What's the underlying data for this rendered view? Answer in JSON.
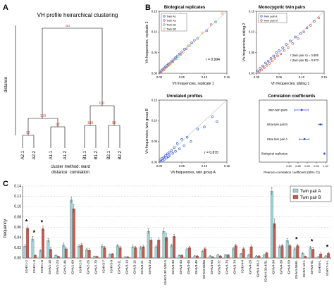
{
  "figure": {
    "panel_a_letter": "A",
    "panel_b_letter": "B",
    "panel_c_letter": "C"
  },
  "chart_data": [
    {
      "type": "dendrogram",
      "title": "VH profile heirarchical clustering",
      "ylabel": "distance",
      "caption_method": "cluster method: ward",
      "caption_distance": "distance: correlation",
      "leaves": [
        "A2.1",
        "A2.2",
        "A1.1",
        "A1.2",
        "B1.1",
        "B1.2",
        "B2.1",
        "B2.2"
      ],
      "node_labels": [
        "au",
        "100",
        "92",
        "92",
        "100",
        "100",
        "88"
      ]
    },
    {
      "type": "scatter",
      "title": "Biological replicates",
      "xlabel": "Vh frequencies, replicate 1",
      "ylabel": "Vh frequencies, replicate 2",
      "r_label": "r = 0.994",
      "xlim": [
        0,
        0.15
      ],
      "ylim": [
        0,
        0.15
      ],
      "xticks": [
        "0.00",
        "0.05",
        "0.10",
        "0.15"
      ],
      "yticks": [
        "0.00",
        "0.05",
        "0.10",
        "0.15"
      ],
      "legend": [
        "Twin A1",
        "Twin A2",
        "Twin B1",
        "Twin B2"
      ],
      "legend_colors": [
        "#2b4fd6",
        "#e0403a",
        "#3a8bd6",
        "#e8a040"
      ],
      "points": [
        [
          0.002,
          0.004
        ],
        [
          0.004,
          0.003
        ],
        [
          0.005,
          0.007
        ],
        [
          0.007,
          0.006
        ],
        [
          0.008,
          0.01
        ],
        [
          0.01,
          0.009
        ],
        [
          0.011,
          0.013
        ],
        [
          0.013,
          0.012
        ],
        [
          0.014,
          0.016
        ],
        [
          0.016,
          0.015
        ],
        [
          0.017,
          0.019
        ],
        [
          0.019,
          0.018
        ],
        [
          0.02,
          0.022
        ],
        [
          0.022,
          0.021
        ],
        [
          0.024,
          0.025
        ],
        [
          0.026,
          0.024
        ],
        [
          0.028,
          0.03
        ],
        [
          0.03,
          0.028
        ],
        [
          0.032,
          0.034
        ],
        [
          0.034,
          0.033
        ],
        [
          0.036,
          0.038
        ],
        [
          0.038,
          0.036
        ],
        [
          0.04,
          0.042
        ],
        [
          0.043,
          0.041
        ],
        [
          0.045,
          0.047
        ],
        [
          0.048,
          0.046
        ],
        [
          0.05,
          0.052
        ],
        [
          0.053,
          0.051
        ],
        [
          0.056,
          0.058
        ],
        [
          0.06,
          0.059
        ],
        [
          0.064,
          0.066
        ],
        [
          0.068,
          0.067
        ],
        [
          0.072,
          0.074
        ],
        [
          0.078,
          0.08
        ],
        [
          0.085,
          0.084
        ],
        [
          0.095,
          0.098
        ],
        [
          0.105,
          0.103
        ],
        [
          0.115,
          0.118
        ],
        [
          0.125,
          0.124
        ],
        [
          0.14,
          0.145
        ]
      ]
    },
    {
      "type": "scatter",
      "title": "Monozygotic twin pairs",
      "xlabel": "Vh frequencies, sibling 1",
      "ylabel": "Vh frequencies, sibling 2",
      "r_label_a": "r (twin pair A) = 0.885",
      "r_label_b": "r (twin pair B) = 0.972",
      "xlim": [
        0,
        0.15
      ],
      "ylim": [
        0,
        0.15
      ],
      "xticks": [
        "0.00",
        "0.05",
        "0.10",
        "0.15"
      ],
      "yticks": [
        "0.00",
        "0.05",
        "0.10",
        "0.15"
      ],
      "legend": [
        "Twin pair A",
        "Twin pair B"
      ],
      "legend_colors": [
        "#2b4fd6",
        "#e0403a"
      ],
      "points": [
        [
          0.003,
          0.006
        ],
        [
          0.006,
          0.004
        ],
        [
          0.008,
          0.012
        ],
        [
          0.011,
          0.008
        ],
        [
          0.014,
          0.018
        ],
        [
          0.017,
          0.013
        ],
        [
          0.02,
          0.025
        ],
        [
          0.023,
          0.019
        ],
        [
          0.026,
          0.03
        ],
        [
          0.029,
          0.024
        ],
        [
          0.032,
          0.036
        ],
        [
          0.035,
          0.03
        ],
        [
          0.038,
          0.042
        ],
        [
          0.041,
          0.036
        ],
        [
          0.044,
          0.05
        ],
        [
          0.047,
          0.042
        ],
        [
          0.05,
          0.055
        ],
        [
          0.054,
          0.047
        ],
        [
          0.058,
          0.062
        ],
        [
          0.062,
          0.055
        ],
        [
          0.066,
          0.07
        ],
        [
          0.07,
          0.062
        ],
        [
          0.075,
          0.078
        ],
        [
          0.08,
          0.072
        ],
        [
          0.086,
          0.088
        ],
        [
          0.092,
          0.084
        ],
        [
          0.098,
          0.096
        ],
        [
          0.105,
          0.1
        ],
        [
          0.112,
          0.11
        ],
        [
          0.12,
          0.116
        ],
        [
          0.128,
          0.126
        ],
        [
          0.138,
          0.134
        ]
      ]
    },
    {
      "type": "scatter",
      "title": "Unrelated profiles",
      "xlabel": "Vh frequencies, twin group A",
      "ylabel": "Vh frequencies, twin group B",
      "r_label": "r = 0.870",
      "xlim": [
        0,
        0.15
      ],
      "ylim": [
        0,
        0.15
      ],
      "xticks": [
        "0.00",
        "0.05",
        "0.10",
        "0.15"
      ],
      "yticks": [
        "0.00",
        "0.05",
        "0.10",
        "0.15"
      ],
      "points": [
        [
          0.002,
          0.005
        ],
        [
          0.004,
          0.002
        ],
        [
          0.006,
          0.009
        ],
        [
          0.008,
          0.004
        ],
        [
          0.01,
          0.012
        ],
        [
          0.012,
          0.007
        ],
        [
          0.014,
          0.016
        ],
        [
          0.016,
          0.01
        ],
        [
          0.018,
          0.02
        ],
        [
          0.02,
          0.013
        ],
        [
          0.022,
          0.024
        ],
        [
          0.024,
          0.017
        ],
        [
          0.027,
          0.028
        ],
        [
          0.03,
          0.021
        ],
        [
          0.033,
          0.035
        ],
        [
          0.036,
          0.026
        ],
        [
          0.04,
          0.045
        ],
        [
          0.045,
          0.032
        ],
        [
          0.05,
          0.055
        ],
        [
          0.055,
          0.04
        ],
        [
          0.062,
          0.06
        ],
        [
          0.07,
          0.05
        ],
        [
          0.085,
          0.08
        ],
        [
          0.1,
          0.085
        ],
        [
          0.118,
          0.11
        ],
        [
          0.128,
          0.098
        ]
      ]
    },
    {
      "type": "forest",
      "title": "Correlation coefficients",
      "xlabel": "Pearson correlation coefficient (95% CI)",
      "xlim": [
        0.8,
        1.0
      ],
      "xticks": [
        "0.80",
        "0.85",
        "0.90",
        "0.95",
        "1.00"
      ],
      "categories": [
        "Inter-twin pairs",
        "Intra-twin pair B",
        "Intra-twin pair A",
        "Biological replicates"
      ],
      "estimates": [
        0.87,
        0.972,
        0.885,
        0.994
      ],
      "ci_low": [
        0.83,
        0.962,
        0.855,
        0.992
      ],
      "ci_high": [
        0.905,
        0.981,
        0.91,
        0.996
      ]
    },
    {
      "type": "bar",
      "ylabel": "frequency",
      "ylim": [
        0,
        0.14
      ],
      "yticks": [
        "0.00",
        "0.02",
        "0.04",
        "0.06",
        "0.08",
        "0.10",
        "0.12",
        "0.14"
      ],
      "legend": [
        "Twin pair A",
        "Twin pair B"
      ],
      "legend_colors": [
        "#9fd3d6",
        "#c95a4e"
      ],
      "categories": [
        "IGHV1-2",
        "IGHV1-3",
        "IGHV1-8",
        "IGHV1-18",
        "IGHV1-24",
        "IGHV1-46",
        "IGHV1-69",
        "IGHV2-5",
        "IGHV2-26",
        "IGHV2-70",
        "IGHV3-7",
        "IGHV3-9",
        "IGHV3-11",
        "IGHV3-13",
        "IGHV3-15",
        "IGHV3-21",
        "IGHV3-23",
        "IGHV3-30",
        "IGHV3-30.3/30-5",
        "IGHV3-33",
        "IGHV3-43",
        "IGHV3-48",
        "IGHV3-49",
        "IGHV3-53/66",
        "IGHV3-64",
        "IGHV3-72",
        "IGHV3-73",
        "IGHV3-74",
        "IGHV4-4",
        "IGHV4-28",
        "IGHV4-30-2",
        "IGHV4-30-4/31",
        "IGHV4-34",
        "IGHV4-39",
        "IGHV4-59",
        "IGHV4-59/61",
        "IGHV5-10-1",
        "IGHV5-51",
        "IGHV6-1",
        "IGHV7-4-1"
      ],
      "tick_label_indices": [
        0,
        1,
        2,
        3,
        4,
        5,
        6,
        7,
        8,
        9,
        10,
        11,
        12,
        13,
        14,
        15,
        16,
        18,
        19,
        20,
        21,
        22,
        23,
        24,
        25,
        26,
        27,
        28,
        29,
        30,
        31,
        32,
        33,
        34,
        35,
        36,
        37,
        38,
        39
      ],
      "series": [
        {
          "name": "Twin pair A",
          "values": [
            0.023,
            0.037,
            0.014,
            0.034,
            0.005,
            0.025,
            0.113,
            0.023,
            0.016,
            0.003,
            0.023,
            0.007,
            0.024,
            0.002,
            0.022,
            0.02,
            0.052,
            0.022,
            0.052,
            0.024,
            0.005,
            0.017,
            0.004,
            0.013,
            0.004,
            0.006,
            0.006,
            0.018,
            0.008,
            0.006,
            0.004,
            0.006,
            0.13,
            0.022,
            0.034,
            0.018,
            0.009,
            0.02,
            0.002,
            0.004
          ]
        },
        {
          "name": "Twin pair B",
          "values": [
            0.058,
            0.005,
            0.057,
            0.017,
            0.003,
            0.018,
            0.096,
            0.025,
            0.015,
            0.003,
            0.02,
            0.008,
            0.02,
            0.002,
            0.02,
            0.022,
            0.035,
            0.035,
            0.04,
            0.042,
            0.005,
            0.02,
            0.004,
            0.018,
            0.002,
            0.004,
            0.006,
            0.024,
            0.018,
            0.022,
            0.004,
            0.01,
            0.067,
            0.024,
            0.024,
            0.024,
            0.003,
            0.017,
            0.008,
            0.009
          ]
        }
      ],
      "errors_a": [
        0.003,
        0.005,
        0.002,
        0.004,
        0.002,
        0.004,
        0.006,
        0.003,
        0.003,
        0.001,
        0.003,
        0.001,
        0.003,
        0.001,
        0.003,
        0.003,
        0.005,
        0.003,
        0.005,
        0.003,
        0.001,
        0.002,
        0.001,
        0.002,
        0.001,
        0.001,
        0.001,
        0.002,
        0.001,
        0.001,
        0.001,
        0.001,
        0.008,
        0.003,
        0.004,
        0.003,
        0.002,
        0.003,
        0.001,
        0.001
      ],
      "errors_b": [
        0.005,
        0.001,
        0.005,
        0.003,
        0.001,
        0.003,
        0.008,
        0.003,
        0.003,
        0.001,
        0.003,
        0.001,
        0.003,
        0.001,
        0.003,
        0.003,
        0.005,
        0.004,
        0.008,
        0.004,
        0.001,
        0.003,
        0.001,
        0.003,
        0.001,
        0.001,
        0.001,
        0.003,
        0.002,
        0.003,
        0.001,
        0.002,
        0.009,
        0.003,
        0.003,
        0.003,
        0.001,
        0.003,
        0.002,
        0.002
      ],
      "significance_marker": "*",
      "significant_indices": [
        0,
        1,
        2,
        35,
        37,
        39
      ]
    }
  ]
}
